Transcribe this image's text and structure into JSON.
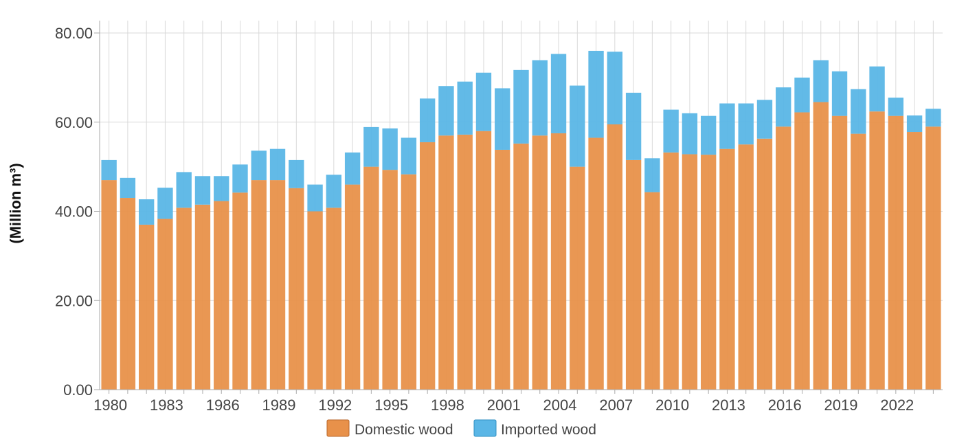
{
  "chart_data": {
    "type": "bar",
    "stacked": true,
    "title": "",
    "xlabel": "",
    "ylabel": "(Million m³)",
    "ylim": [
      0,
      80
    ],
    "yticks": [
      "0.00",
      "20.00",
      "40.00",
      "60.00",
      "80.00"
    ],
    "ytick_values": [
      0,
      20,
      40,
      60,
      80
    ],
    "grid": true,
    "legend_position": "bottom-center",
    "categories": [
      "1980",
      "1981",
      "1982",
      "1983",
      "1984",
      "1985",
      "1986",
      "1987",
      "1988",
      "1989",
      "1990",
      "1991",
      "1992",
      "1993",
      "1994",
      "1995",
      "1996",
      "1997",
      "1998",
      "1999",
      "2000",
      "2001",
      "2002",
      "2003",
      "2004",
      "2005",
      "2006",
      "2007",
      "2008",
      "2009",
      "2010",
      "2011",
      "2012",
      "2013",
      "2014",
      "2015",
      "2016",
      "2017",
      "2018",
      "2019",
      "2020",
      "2021",
      "2022",
      "2023",
      "2024"
    ],
    "xtick_labels": [
      "1980",
      "1983",
      "1986",
      "1989",
      "1992",
      "1995",
      "1998",
      "2001",
      "2004",
      "2007",
      "2010",
      "2013",
      "2016",
      "2019",
      "2022"
    ],
    "series": [
      {
        "name": "Domestic wood",
        "color": "#e8914a",
        "values": [
          47.0,
          43.0,
          37.0,
          38.3,
          40.8,
          41.5,
          42.3,
          44.2,
          47.0,
          47.0,
          45.2,
          40.0,
          40.8,
          46.0,
          50.0,
          49.3,
          48.3,
          55.5,
          57.0,
          57.2,
          58.0,
          53.8,
          55.2,
          57.0,
          57.5,
          50.0,
          56.5,
          59.5,
          51.5,
          44.3,
          53.2,
          52.8,
          52.7,
          54.0,
          55.0,
          56.3,
          59.0,
          62.2,
          64.5,
          61.4,
          57.4,
          62.4,
          61.4,
          57.8,
          59.0
        ]
      },
      {
        "name": "Imported wood",
        "color": "#5ab6e6",
        "values": [
          4.5,
          4.5,
          5.7,
          7.0,
          8.0,
          6.4,
          5.6,
          6.3,
          6.6,
          7.0,
          6.3,
          6.0,
          7.4,
          7.2,
          8.9,
          9.3,
          8.2,
          9.8,
          11.1,
          11.9,
          13.1,
          13.8,
          16.5,
          16.9,
          17.8,
          18.2,
          19.5,
          16.3,
          15.1,
          7.6,
          9.6,
          9.2,
          8.7,
          10.2,
          9.2,
          8.7,
          8.8,
          7.8,
          9.4,
          10.0,
          10.0,
          10.1,
          4.1,
          3.7,
          4.0
        ]
      }
    ]
  },
  "legend": {
    "items": [
      {
        "label": "Domestic wood",
        "color": "#e8914a"
      },
      {
        "label": "Imported wood",
        "color": "#5ab6e6"
      }
    ]
  },
  "colors": {
    "grid": "#d9d9d9",
    "axis": "#aaaaaa",
    "domestic": "#e8914a",
    "imported": "#5ab6e6"
  }
}
